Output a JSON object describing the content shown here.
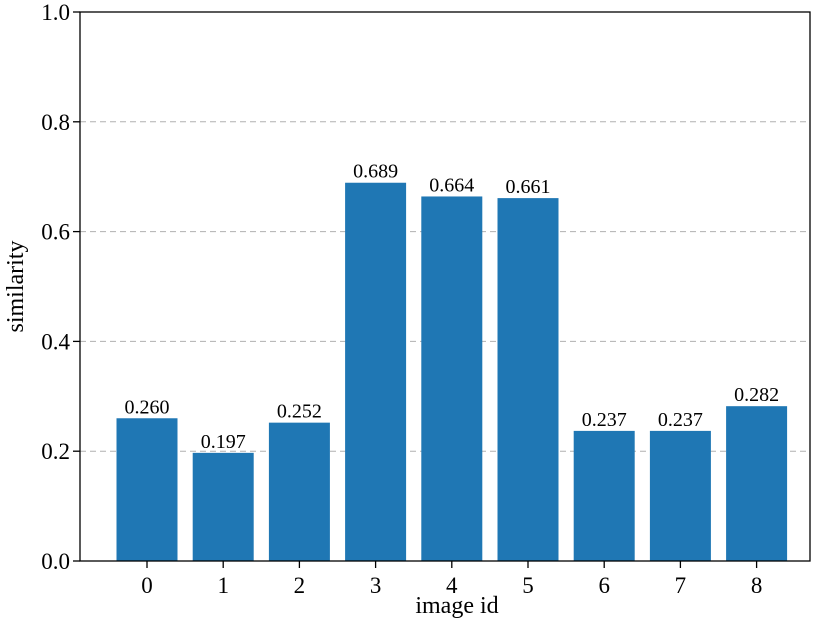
{
  "chart_data": {
    "type": "bar",
    "categories": [
      "0",
      "1",
      "2",
      "3",
      "4",
      "5",
      "6",
      "7",
      "8"
    ],
    "values": [
      0.26,
      0.197,
      0.252,
      0.689,
      0.664,
      0.661,
      0.237,
      0.237,
      0.282
    ],
    "value_labels": [
      "0.260",
      "0.197",
      "0.252",
      "0.689",
      "0.664",
      "0.661",
      "0.237",
      "0.237",
      "0.282"
    ],
    "xlabel": "image id",
    "ylabel": "similarity",
    "ylim": [
      0,
      1
    ],
    "yticks": [
      "0.0",
      "0.2",
      "0.4",
      "0.6",
      "0.8",
      "1.0"
    ],
    "grid": "horizontal dashed at y ticks 0.2–0.8",
    "bar_color": "#1f77b4"
  }
}
